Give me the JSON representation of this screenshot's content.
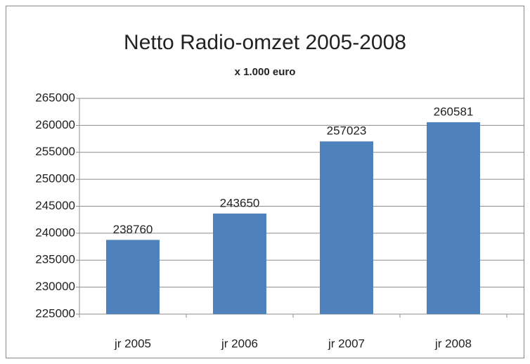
{
  "chart_data": {
    "type": "bar",
    "title": "Netto Radio-omzet 2005-2008",
    "subtitle": "x  1.000 euro",
    "categories": [
      "jr 2005",
      "jr 2006",
      "jr 2007",
      "jr 2008"
    ],
    "values": [
      238760,
      243650,
      257023,
      260581
    ],
    "color": "#4f81bd",
    "ylim": [
      225000,
      265000
    ],
    "yticks": [
      225000,
      230000,
      235000,
      240000,
      245000,
      250000,
      255000,
      260000,
      265000
    ],
    "grid": true
  }
}
